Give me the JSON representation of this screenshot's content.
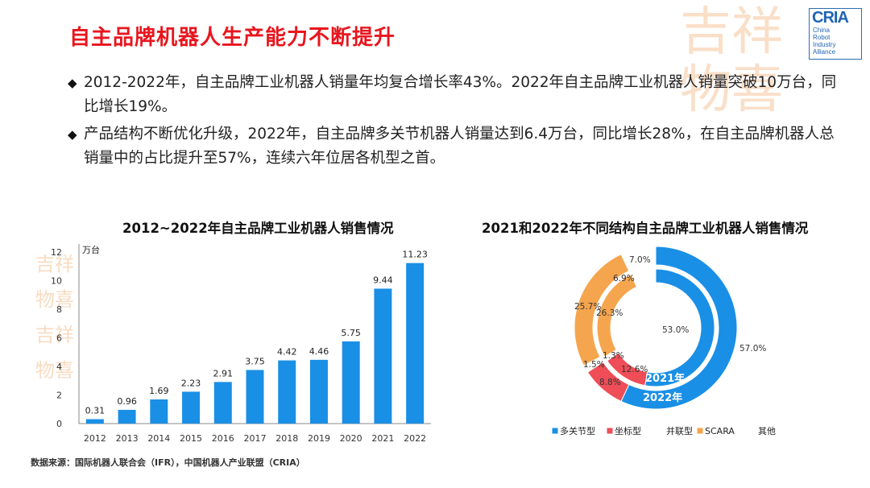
{
  "title": "自主品牌机器人生产能力不断提升",
  "logo": {
    "name": "CRIA",
    "sub": [
      "China",
      "Robot",
      "Industry",
      "Alliance"
    ]
  },
  "seal_text": [
    "吉",
    "祥",
    "物",
    "喜"
  ],
  "bullets": [
    "2012-2022年，自主品牌工业机器人销量年均复合增长率43%。2022年自主品牌工业机器人销量突破10万台，同比增长19%。",
    "产品结构不断优化升级，2022年，自主品牌多关节机器人销量达到6.4万台，同比增长28%，在自主品牌机器人总销量中的占比提升至57%，连续六年位居各机型之首。"
  ],
  "source": "数据来源：国际机器人联合会（IFR），中国机器人产业联盟（CRIA）",
  "colors": {
    "title": "#e8161e",
    "bar": "#1a8fe6",
    "multi": "#1a8fe6",
    "coord": "#ef4d57",
    "parallel": "#ffffff",
    "scara": "#f5a54e",
    "other": "#ffffff"
  },
  "chart_data": [
    {
      "type": "bar",
      "title": "2012~2022年自主品牌工业机器人销售情况",
      "unit": "万台",
      "categories": [
        "2012",
        "2013",
        "2014",
        "2015",
        "2016",
        "2017",
        "2018",
        "2019",
        "2020",
        "2021",
        "2022"
      ],
      "values": [
        0.31,
        0.96,
        1.69,
        2.23,
        2.91,
        3.75,
        4.42,
        4.46,
        5.75,
        9.44,
        11.23
      ],
      "ylim": [
        0,
        12
      ],
      "yticks": [
        "0",
        "2",
        "4",
        "6",
        "8",
        "10",
        "12"
      ]
    },
    {
      "type": "pie",
      "title": "2021和2022年不同结构自主品牌工业机器人销售情况",
      "categories": [
        "多关节型",
        "坐标型",
        "并联型",
        "SCARA",
        "其他"
      ],
      "series": [
        {
          "name": "2021年",
          "values": [
            53.0,
            12.6,
            1.3,
            26.3,
            6.9
          ],
          "labels": [
            "53.0%",
            "12.6%",
            "1.3%",
            "26.3%",
            "6.9%"
          ]
        },
        {
          "name": "2022年",
          "values": [
            57.0,
            8.8,
            1.5,
            25.7,
            7.0
          ],
          "labels": [
            "57.0%",
            "8.8%",
            "1.5%",
            "25.7%",
            "7.0%"
          ]
        }
      ]
    }
  ]
}
